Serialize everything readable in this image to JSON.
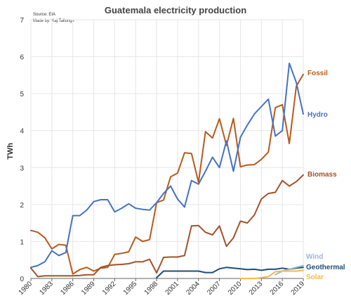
{
  "chart_data": {
    "type": "line",
    "title": "Guatemala electricity production",
    "source": "Source: EIA",
    "author": "Made by: Kaj Tallungs",
    "xlabel": "",
    "ylabel": "TWh",
    "xlim": [
      1980,
      2019
    ],
    "ylim": [
      0,
      7
    ],
    "x_ticks": [
      1980,
      1983,
      1986,
      1989,
      1992,
      1995,
      1998,
      2001,
      2004,
      2007,
      2010,
      2013,
      2016,
      2019
    ],
    "y_ticks": [
      0,
      1,
      2,
      3,
      4,
      5,
      6,
      7
    ],
    "grid": true,
    "legend": "labels at line ends (right)",
    "x": [
      1980,
      1981,
      1982,
      1983,
      1984,
      1985,
      1986,
      1987,
      1988,
      1989,
      1990,
      1991,
      1992,
      1993,
      1994,
      1995,
      1996,
      1997,
      1998,
      1999,
      2000,
      2001,
      2002,
      2003,
      2004,
      2005,
      2006,
      2007,
      2008,
      2009,
      2010,
      2011,
      2012,
      2013,
      2014,
      2015,
      2016,
      2017,
      2018,
      2019
    ],
    "series": [
      {
        "name": "Fossil",
        "color": "#b85a1b",
        "values": [
          1.3,
          1.25,
          1.1,
          0.8,
          0.92,
          0.9,
          0.12,
          0.24,
          0.3,
          0.2,
          0.28,
          0.3,
          0.65,
          0.68,
          0.72,
          1.12,
          1.0,
          1.05,
          2.05,
          2.12,
          2.75,
          2.85,
          3.4,
          3.38,
          2.6,
          3.97,
          3.8,
          4.32,
          3.6,
          4.33,
          3.02,
          3.07,
          3.08,
          3.22,
          3.42,
          4.62,
          4.7,
          3.65,
          5.2,
          5.52
        ]
      },
      {
        "name": "Hydro",
        "color": "#4472c4",
        "values": [
          0.3,
          0.35,
          0.45,
          0.75,
          0.62,
          0.7,
          1.7,
          1.7,
          1.85,
          2.08,
          2.13,
          2.13,
          1.8,
          1.9,
          2.02,
          1.9,
          1.87,
          1.85,
          2.05,
          2.3,
          2.5,
          2.15,
          1.93,
          2.65,
          2.55,
          2.9,
          3.28,
          3.0,
          3.72,
          2.9,
          3.82,
          4.15,
          4.45,
          4.65,
          4.85,
          3.85,
          4.0,
          5.82,
          5.3,
          4.45
        ]
      },
      {
        "name": "Biomass",
        "color": "#a0522d",
        "values": [
          0.28,
          0.05,
          0.07,
          0.07,
          0.07,
          0.07,
          0.07,
          0.08,
          0.1,
          0.1,
          0.3,
          0.35,
          0.37,
          0.38,
          0.4,
          0.45,
          0.45,
          0.52,
          0.15,
          0.57,
          0.58,
          0.58,
          0.62,
          1.42,
          1.43,
          1.25,
          1.18,
          1.42,
          0.87,
          1.1,
          1.55,
          1.5,
          1.72,
          2.15,
          2.3,
          2.33,
          2.65,
          2.5,
          2.62,
          2.8
        ]
      },
      {
        "name": "Geothermal",
        "color": "#1f4e79",
        "values": [
          null,
          null,
          null,
          null,
          null,
          null,
          null,
          null,
          null,
          null,
          null,
          null,
          null,
          null,
          null,
          null,
          null,
          null,
          0.02,
          0.2,
          0.2,
          0.2,
          0.2,
          0.2,
          0.2,
          0.16,
          0.16,
          0.26,
          0.3,
          0.28,
          0.26,
          0.24,
          0.25,
          0.22,
          0.25,
          0.25,
          0.28,
          0.25,
          0.28,
          0.3
        ]
      },
      {
        "name": "Wind",
        "color": "#9fb7e2",
        "values": [
          null,
          null,
          null,
          null,
          null,
          null,
          null,
          null,
          null,
          null,
          null,
          null,
          null,
          null,
          null,
          null,
          null,
          null,
          null,
          null,
          null,
          null,
          null,
          null,
          null,
          null,
          null,
          null,
          null,
          null,
          null,
          null,
          null,
          null,
          null,
          0.1,
          0.2,
          0.25,
          0.3,
          0.35
        ]
      },
      {
        "name": "Solar",
        "color": "#f5b942",
        "values": [
          null,
          null,
          null,
          null,
          null,
          null,
          null,
          null,
          null,
          null,
          null,
          null,
          null,
          null,
          null,
          null,
          null,
          null,
          null,
          null,
          null,
          null,
          null,
          null,
          null,
          null,
          null,
          null,
          null,
          null,
          0.0,
          0.0,
          0.0,
          0.02,
          0.05,
          0.18,
          0.2,
          0.2,
          0.2,
          0.22
        ]
      }
    ]
  }
}
